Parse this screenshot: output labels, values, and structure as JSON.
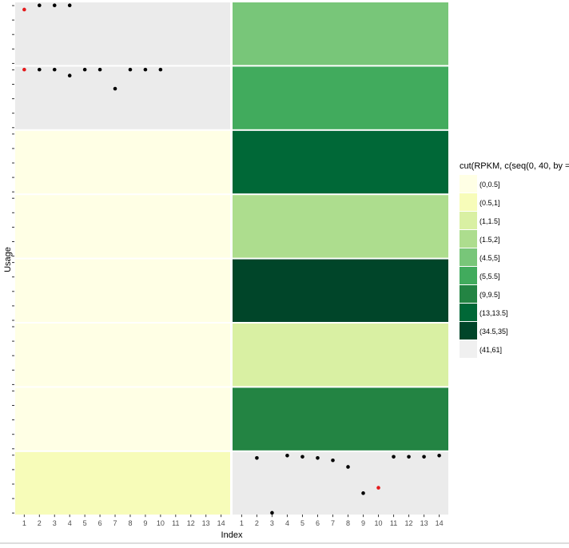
{
  "chart_data": {
    "type": "scatter",
    "layout": "facet_grid",
    "title": "",
    "xlabel": "Index",
    "ylabel": "Usage",
    "x_ticks": [
      1,
      2,
      3,
      4,
      5,
      6,
      7,
      8,
      9,
      10,
      11,
      12,
      13,
      14
    ],
    "xlim": [
      0.4,
      14.6
    ],
    "ylim": [
      0,
      1.05
    ],
    "y_tick_labels_shown": false,
    "rows": 8,
    "cols": 2,
    "panel_empty_color": "#ebebeb",
    "point_color": "#000000",
    "highlight_color": "#e41a1c",
    "panels": [
      {
        "row": 1,
        "col": 1,
        "fill": "(41,61]",
        "points": [
          {
            "x": 1,
            "y": 0.93,
            "highlight": true
          },
          {
            "x": 2,
            "y": 1.0
          },
          {
            "x": 3,
            "y": 1.0
          },
          {
            "x": 4,
            "y": 1.0
          }
        ]
      },
      {
        "row": 1,
        "col": 2,
        "fill": "(4.5,5]",
        "points": []
      },
      {
        "row": 2,
        "col": 1,
        "fill": "(41,61]",
        "points": [
          {
            "x": 1,
            "y": 1.0,
            "highlight": true
          },
          {
            "x": 2,
            "y": 1.0
          },
          {
            "x": 3,
            "y": 1.0
          },
          {
            "x": 4,
            "y": 0.9
          },
          {
            "x": 5,
            "y": 1.0
          },
          {
            "x": 6,
            "y": 1.0
          },
          {
            "x": 7,
            "y": 0.68
          },
          {
            "x": 8,
            "y": 1.0
          },
          {
            "x": 9,
            "y": 1.0
          },
          {
            "x": 10,
            "y": 1.0
          }
        ]
      },
      {
        "row": 2,
        "col": 2,
        "fill": "(5,5.5]",
        "points": []
      },
      {
        "row": 3,
        "col": 1,
        "fill": "(0,0.5]",
        "points": []
      },
      {
        "row": 3,
        "col": 2,
        "fill": "(13,13.5]",
        "points": []
      },
      {
        "row": 4,
        "col": 1,
        "fill": "(0,0.5]",
        "points": []
      },
      {
        "row": 4,
        "col": 2,
        "fill": "(1.5,2]",
        "points": []
      },
      {
        "row": 5,
        "col": 1,
        "fill": "(0,0.5]",
        "points": []
      },
      {
        "row": 5,
        "col": 2,
        "fill": "(34.5,35]",
        "points": []
      },
      {
        "row": 6,
        "col": 1,
        "fill": "(0,0.5]",
        "points": []
      },
      {
        "row": 6,
        "col": 2,
        "fill": "(1,1.5]",
        "points": []
      },
      {
        "row": 7,
        "col": 1,
        "fill": "(0,0.5]",
        "points": []
      },
      {
        "row": 7,
        "col": 2,
        "fill": "(9,9.5]",
        "points": []
      },
      {
        "row": 8,
        "col": 1,
        "fill": "(0.5,1]",
        "points": []
      },
      {
        "row": 8,
        "col": 2,
        "fill": "(41,61]",
        "points": [
          {
            "x": 2,
            "y": 0.95
          },
          {
            "x": 3,
            "y": 0.03
          },
          {
            "x": 4,
            "y": 0.99
          },
          {
            "x": 5,
            "y": 0.97
          },
          {
            "x": 6,
            "y": 0.95
          },
          {
            "x": 7,
            "y": 0.91
          },
          {
            "x": 8,
            "y": 0.8
          },
          {
            "x": 9,
            "y": 0.36
          },
          {
            "x": 10,
            "y": 0.45,
            "highlight": true
          },
          {
            "x": 11,
            "y": 0.97
          },
          {
            "x": 12,
            "y": 0.97
          },
          {
            "x": 13,
            "y": 0.97
          },
          {
            "x": 14,
            "y": 0.99
          }
        ]
      }
    ],
    "legend": {
      "title": "cut(RPKM, c(seq(0, 40, by =",
      "position": "right",
      "entries": [
        {
          "label": "(0,0.5]",
          "color": "#ffffe5"
        },
        {
          "label": "(0.5,1]",
          "color": "#f7fcb9"
        },
        {
          "label": "(1,1.5]",
          "color": "#d9f0a3"
        },
        {
          "label": "(1.5,2]",
          "color": "#addd8e"
        },
        {
          "label": "(4.5,5]",
          "color": "#78c679"
        },
        {
          "label": "(5,5.5]",
          "color": "#41ab5d"
        },
        {
          "label": "(9,9.5]",
          "color": "#238443"
        },
        {
          "label": "(13,13.5]",
          "color": "#006837"
        },
        {
          "label": "(34.5,35]",
          "color": "#004529"
        },
        {
          "label": "(41,61]",
          "color": "#f0f0f0"
        }
      ]
    }
  }
}
